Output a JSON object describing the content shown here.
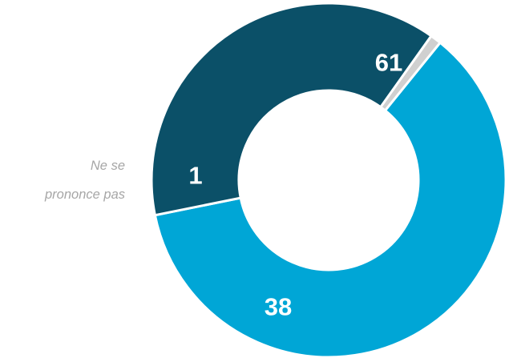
{
  "chart_data": {
    "type": "pie",
    "donut": true,
    "slices": [
      {
        "value": 61,
        "label": "61",
        "color": "#00a6d6"
      },
      {
        "value": 38,
        "label": "38",
        "color": "#0b5068"
      },
      {
        "value": 1,
        "label": "1",
        "color": "#d0d0d0",
        "category": [
          "Ne se",
          "prononce pas"
        ]
      }
    ],
    "legend": "none"
  }
}
